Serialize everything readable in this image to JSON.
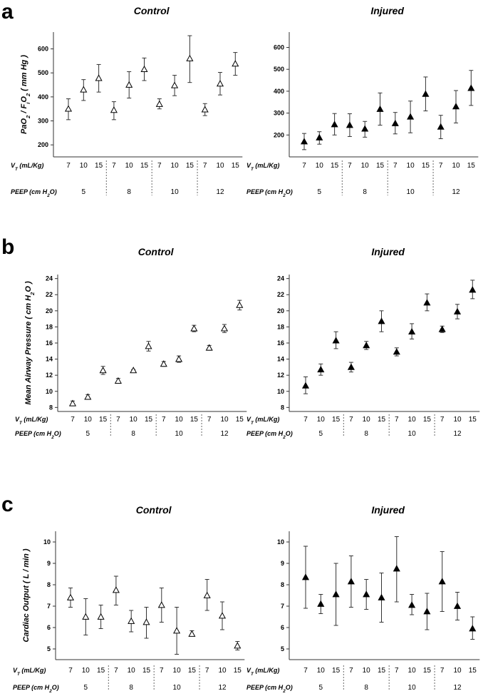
{
  "panel_labels": [
    "a",
    "b",
    "c"
  ],
  "x_axis": {
    "vt_label": "V_T (mL/Kg)",
    "peep_label": "PEEP (cm H2O)",
    "vt_values": [
      "7",
      "10",
      "15",
      "7",
      "10",
      "15",
      "7",
      "10",
      "15",
      "7",
      "10",
      "15"
    ],
    "peep_groups": [
      "5",
      "8",
      "10",
      "12"
    ]
  },
  "marker_colors": {
    "Control": "#ffffff",
    "Injured": "#000000"
  },
  "chart_data": [
    {
      "type": "scatter",
      "panel": "a",
      "title": "Control",
      "group": "Control",
      "ylabel": "PaO2 / FiO2 ( mm Hg )",
      "ylim": [
        150,
        670
      ],
      "yticks": [
        200,
        300,
        400,
        500,
        600
      ],
      "values": [
        350,
        430,
        478,
        345,
        450,
        515,
        370,
        448,
        560,
        347,
        455,
        538
      ],
      "err_low": [
        305,
        385,
        420,
        305,
        395,
        468,
        350,
        405,
        460,
        322,
        408,
        490
      ],
      "err_high": [
        392,
        472,
        535,
        380,
        505,
        562,
        392,
        490,
        655,
        372,
        502,
        585
      ]
    },
    {
      "type": "scatter",
      "panel": "a",
      "title": "Injured",
      "group": "Injured",
      "ylabel": "",
      "ylim": [
        100,
        670
      ],
      "yticks": [
        200,
        300,
        400,
        500,
        600
      ],
      "values": [
        170,
        188,
        248,
        245,
        228,
        318,
        253,
        283,
        387,
        237,
        330,
        414
      ],
      "err_low": [
        133,
        158,
        200,
        193,
        190,
        245,
        205,
        210,
        310,
        183,
        255,
        335
      ],
      "err_high": [
        207,
        215,
        298,
        297,
        262,
        392,
        303,
        355,
        465,
        290,
        403,
        495
      ]
    },
    {
      "type": "scatter",
      "panel": "b",
      "title": "Control",
      "group": "Control",
      "ylabel": "Mean Airway Pressure ( cm H2O )",
      "ylim": [
        7.5,
        24.5
      ],
      "yticks": [
        8,
        10,
        12,
        14,
        16,
        18,
        20,
        22,
        24
      ],
      "values": [
        8.5,
        9.3,
        12.6,
        11.3,
        12.6,
        15.6,
        13.4,
        14.0,
        17.8,
        15.4,
        17.8,
        20.7
      ],
      "err_low": [
        8.2,
        9.0,
        12.1,
        11.0,
        12.5,
        15.0,
        13.1,
        13.6,
        17.4,
        15.1,
        17.3,
        20.1
      ],
      "err_high": [
        8.8,
        9.6,
        13.1,
        11.6,
        12.7,
        16.2,
        13.7,
        14.4,
        18.2,
        15.7,
        18.3,
        21.3
      ]
    },
    {
      "type": "scatter",
      "panel": "b",
      "title": "Injured",
      "group": "Injured",
      "ylabel": "",
      "ylim": [
        7.5,
        24.5
      ],
      "yticks": [
        8,
        10,
        12,
        14,
        16,
        18,
        20,
        22,
        24
      ],
      "values": [
        10.7,
        12.7,
        16.3,
        13.0,
        15.7,
        18.7,
        14.9,
        17.4,
        21.0,
        17.7,
        19.9,
        22.6
      ],
      "err_low": [
        9.7,
        12.0,
        15.3,
        12.4,
        15.2,
        17.4,
        14.4,
        16.5,
        20.0,
        17.3,
        19.0,
        21.5
      ],
      "err_high": [
        11.8,
        13.4,
        17.4,
        13.6,
        16.2,
        20.0,
        15.4,
        18.4,
        22.1,
        18.1,
        20.8,
        23.8
      ]
    },
    {
      "type": "scatter",
      "panel": "c",
      "title": "Control",
      "group": "Control",
      "ylabel": "Cardiac Output ( L / min )",
      "ylim": [
        4.5,
        10.5
      ],
      "yticks": [
        5,
        6,
        7,
        8,
        9,
        10
      ],
      "values": [
        7.4,
        6.5,
        6.5,
        7.75,
        6.3,
        6.25,
        7.05,
        5.85,
        5.7,
        7.5,
        6.55,
        5.15
      ],
      "err_low": [
        6.95,
        5.65,
        5.95,
        7.05,
        5.8,
        5.5,
        6.25,
        4.75,
        5.6,
        6.8,
        5.9,
        4.95
      ],
      "err_high": [
        7.85,
        7.35,
        7.05,
        8.4,
        6.8,
        6.95,
        7.85,
        6.95,
        5.85,
        8.25,
        7.2,
        5.35
      ]
    },
    {
      "type": "scatter",
      "panel": "c",
      "title": "Injured",
      "group": "Injured",
      "ylabel": "",
      "ylim": [
        4.5,
        10.5
      ],
      "yticks": [
        5,
        6,
        7,
        8,
        9,
        10
      ],
      "values": [
        8.35,
        7.1,
        7.55,
        8.15,
        7.55,
        7.4,
        8.75,
        7.05,
        6.75,
        8.15,
        7.0,
        5.95
      ],
      "err_low": [
        6.9,
        6.65,
        6.1,
        6.95,
        6.85,
        6.25,
        7.2,
        6.6,
        5.9,
        6.75,
        6.35,
        5.45
      ],
      "err_high": [
        9.8,
        7.55,
        9.0,
        9.35,
        8.25,
        8.55,
        10.25,
        7.55,
        7.6,
        9.55,
        7.65,
        6.5
      ]
    }
  ]
}
